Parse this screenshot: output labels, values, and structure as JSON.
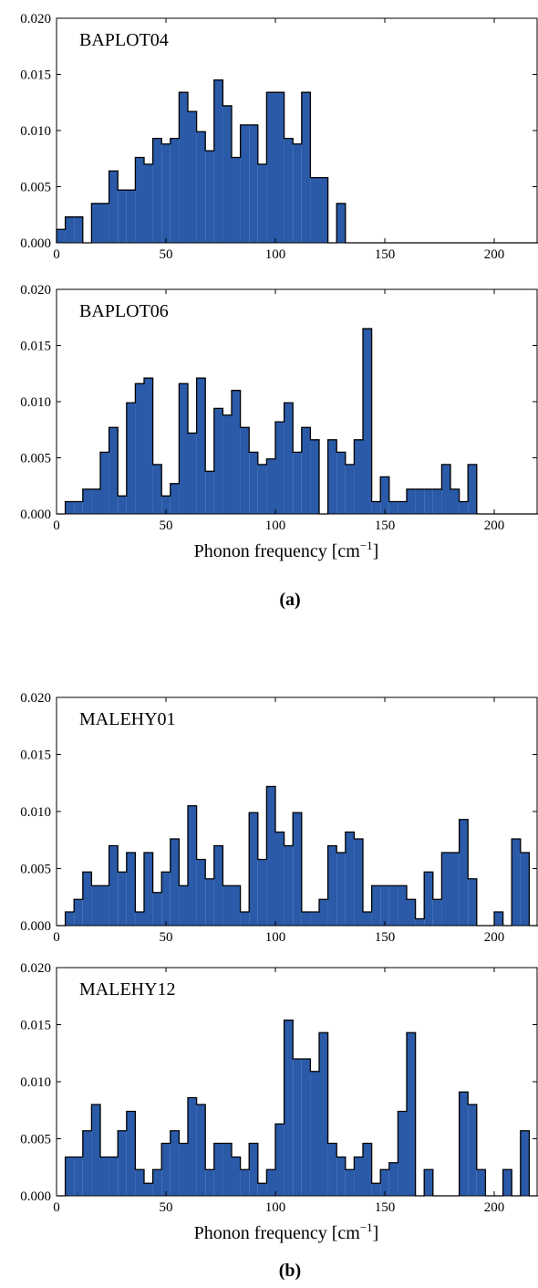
{
  "chart_data": [
    {
      "type": "bar",
      "title": "BAPLOT04",
      "xlabel": "",
      "ylabel": "",
      "bin_width": 4,
      "bin_start": 0,
      "xlim": [
        0,
        220
      ],
      "ylim": [
        0,
        0.02
      ],
      "xticks": [
        0,
        50,
        100,
        150,
        200
      ],
      "yticks": [
        "0.000",
        "0.005",
        "0.010",
        "0.015",
        "0.020"
      ],
      "color": "#2a5aa8",
      "values": [
        0.0012,
        0.0023,
        0.0023,
        0,
        0.0035,
        0.0035,
        0.0064,
        0.0047,
        0.0047,
        0.0076,
        0.007,
        0.0093,
        0.0088,
        0.0093,
        0.0134,
        0.0117,
        0.0099,
        0.0082,
        0.0145,
        0.0122,
        0.0076,
        0.0105,
        0.0105,
        0.007,
        0.0134,
        0.0134,
        0.0093,
        0.0088,
        0.0134,
        0.0058,
        0.0058,
        0,
        0.0035,
        0,
        0,
        0,
        0,
        0,
        0,
        0,
        0,
        0,
        0,
        0,
        0,
        0,
        0,
        0,
        0,
        0,
        0,
        0,
        0,
        0,
        0
      ]
    },
    {
      "type": "bar",
      "title": "BAPLOT06",
      "xlabel": "Phonon frequency [cm",
      "xlabel_sup": "−1",
      "xlabel_end": "]",
      "ylabel": "",
      "bin_width": 4,
      "bin_start": 0,
      "xlim": [
        0,
        220
      ],
      "ylim": [
        0,
        0.02
      ],
      "xticks": [
        0,
        50,
        100,
        150,
        200
      ],
      "yticks": [
        "0.000",
        "0.005",
        "0.010",
        "0.015",
        "0.020"
      ],
      "color": "#2a5aa8",
      "values": [
        0,
        0.0011,
        0.0011,
        0.0022,
        0.0022,
        0.0055,
        0.0077,
        0.0016,
        0.0099,
        0.0116,
        0.0121,
        0.0044,
        0.0016,
        0.0027,
        0.0116,
        0.0072,
        0.0121,
        0.0038,
        0.0094,
        0.0088,
        0.011,
        0.0077,
        0.0055,
        0.0044,
        0.0049,
        0.0082,
        0.0099,
        0.0055,
        0.0077,
        0.0066,
        0,
        0.0066,
        0.0055,
        0.0044,
        0.0066,
        0.0165,
        0.0011,
        0.0033,
        0.0011,
        0.0011,
        0.0022,
        0.0022,
        0.0022,
        0.0022,
        0.0044,
        0.0022,
        0.0011,
        0.0044,
        0,
        0,
        0,
        0,
        0,
        0,
        0
      ]
    },
    {
      "type": "bar",
      "title": "MALEHY01",
      "xlabel": "",
      "ylabel": "",
      "bin_width": 4,
      "bin_start": 0,
      "xlim": [
        0,
        220
      ],
      "ylim": [
        0,
        0.02
      ],
      "xticks": [
        0,
        50,
        100,
        150,
        200
      ],
      "yticks": [
        "0.000",
        "0.005",
        "0.010",
        "0.015",
        "0.020"
      ],
      "color": "#2a5aa8",
      "values": [
        0,
        0.0012,
        0.0023,
        0.0047,
        0.0035,
        0.0035,
        0.007,
        0.0047,
        0.0064,
        0.0012,
        0.0064,
        0.0029,
        0.0047,
        0.0076,
        0.0035,
        0.0105,
        0.0058,
        0.0041,
        0.007,
        0.0035,
        0.0035,
        0.0012,
        0.0099,
        0.0058,
        0.0122,
        0.0082,
        0.007,
        0.0099,
        0.0012,
        0.0012,
        0.0023,
        0.007,
        0.0064,
        0.0082,
        0.0076,
        0.0012,
        0.0035,
        0.0035,
        0.0035,
        0.0035,
        0.0023,
        0.0006,
        0.0047,
        0.0023,
        0.0064,
        0.0064,
        0.0093,
        0.0041,
        0,
        0,
        0.0012,
        0,
        0.0076,
        0.0064,
        0
      ]
    },
    {
      "type": "bar",
      "title": "MALEHY12",
      "xlabel": "Phonon frequency [cm",
      "xlabel_sup": "−1",
      "xlabel_end": "]",
      "ylabel": "",
      "bin_width": 4,
      "bin_start": 0,
      "xlim": [
        0,
        220
      ],
      "ylim": [
        0,
        0.02
      ],
      "xticks": [
        0,
        50,
        100,
        150,
        200
      ],
      "yticks": [
        "0.000",
        "0.005",
        "0.010",
        "0.015",
        "0.020"
      ],
      "color": "#2a5aa8",
      "values": [
        0,
        0.0034,
        0.0034,
        0.0057,
        0.008,
        0.0034,
        0.0034,
        0.0057,
        0.0074,
        0.0023,
        0.0011,
        0.0023,
        0.0046,
        0.0057,
        0.0046,
        0.0086,
        0.008,
        0.0023,
        0.0046,
        0.0046,
        0.0034,
        0.0023,
        0.0046,
        0.0011,
        0.0023,
        0.0063,
        0.0154,
        0.012,
        0.012,
        0.0109,
        0.0143,
        0.0046,
        0.0034,
        0.0023,
        0.0034,
        0.0046,
        0.0011,
        0.0023,
        0.0029,
        0.0074,
        0.0143,
        0,
        0.0023,
        0,
        0,
        0,
        0.0091,
        0.008,
        0.0023,
        0,
        0,
        0.0023,
        0,
        0.0057,
        0
      ]
    }
  ],
  "subfigure_labels": [
    "(a)",
    "(b)"
  ]
}
